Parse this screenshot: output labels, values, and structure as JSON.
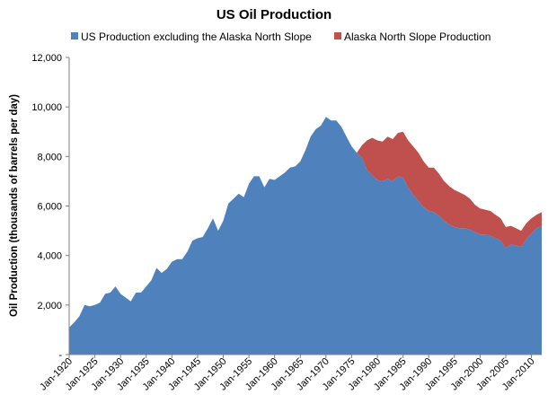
{
  "chart_data": {
    "type": "area",
    "stacked": true,
    "title": "US Oil Production",
    "xlabel": "",
    "ylabel": "Oil Production (thousands of barrels per day)",
    "ylim": [
      0,
      12000
    ],
    "yticks": [
      0,
      2000,
      4000,
      6000,
      8000,
      10000,
      12000
    ],
    "ytick_labels": [
      "-",
      "2,000",
      "4,000",
      "6,000",
      "8,000",
      "10,000",
      "12,000"
    ],
    "xlim": [
      1920,
      2012
    ],
    "xticks": [
      1920,
      1925,
      1930,
      1935,
      1940,
      1945,
      1950,
      1955,
      1960,
      1965,
      1970,
      1975,
      1980,
      1985,
      1990,
      1995,
      2000,
      2005,
      2010
    ],
    "xtick_labels": [
      "Jan-1920",
      "Jan-1925",
      "Jan-1930",
      "Jan-1935",
      "Jan-1940",
      "Jan-1945",
      "Jan-1950",
      "Jan-1955",
      "Jan-1960",
      "Jan-1965",
      "Jan-1970",
      "Jan-1975",
      "Jan-1980",
      "Jan-1985",
      "Jan-1990",
      "Jan-1995",
      "Jan-2000",
      "Jan-2005",
      "Jan-2010"
    ],
    "grid": false,
    "legend_position": "top",
    "x": [
      1920,
      1921,
      1922,
      1923,
      1924,
      1925,
      1926,
      1927,
      1928,
      1929,
      1930,
      1931,
      1932,
      1933,
      1934,
      1935,
      1936,
      1937,
      1938,
      1939,
      1940,
      1941,
      1942,
      1943,
      1944,
      1945,
      1946,
      1947,
      1948,
      1949,
      1950,
      1951,
      1952,
      1953,
      1954,
      1955,
      1956,
      1957,
      1958,
      1959,
      1960,
      1961,
      1962,
      1963,
      1964,
      1965,
      1966,
      1967,
      1968,
      1969,
      1970,
      1971,
      1972,
      1973,
      1974,
      1975,
      1976,
      1977,
      1978,
      1979,
      1980,
      1981,
      1982,
      1983,
      1984,
      1985,
      1986,
      1987,
      1988,
      1989,
      1990,
      1991,
      1992,
      1993,
      1994,
      1995,
      1996,
      1997,
      1998,
      1999,
      2000,
      2001,
      2002,
      2003,
      2004,
      2005,
      2006,
      2007,
      2008,
      2009,
      2010,
      2011,
      2012
    ],
    "series": [
      {
        "name": "US Production excluding the Alaska North Slope",
        "color": "#4f81bd",
        "values": [
          1100,
          1300,
          1550,
          2000,
          1950,
          2000,
          2100,
          2450,
          2500,
          2750,
          2450,
          2300,
          2150,
          2500,
          2500,
          2750,
          3000,
          3500,
          3300,
          3450,
          3750,
          3850,
          3850,
          4150,
          4600,
          4700,
          4750,
          5100,
          5500,
          5000,
          5400,
          6100,
          6300,
          6500,
          6350,
          6900,
          7200,
          7200,
          6750,
          7100,
          7050,
          7200,
          7350,
          7550,
          7600,
          7800,
          8250,
          8800,
          9100,
          9250,
          9600,
          9450,
          9450,
          9200,
          8800,
          8400,
          8150,
          7950,
          7450,
          7250,
          7050,
          7000,
          7100,
          7000,
          7200,
          7150,
          6750,
          6450,
          6200,
          5950,
          5800,
          5750,
          5600,
          5400,
          5250,
          5150,
          5100,
          5100,
          5050,
          4950,
          4850,
          4850,
          4800,
          4700,
          4600,
          4300,
          4450,
          4400,
          4350,
          4650,
          4900,
          5100,
          5200
        ]
      },
      {
        "name": "Alaska North Slope Production",
        "color": "#c0504d",
        "values": [
          0,
          0,
          0,
          0,
          0,
          0,
          0,
          0,
          0,
          0,
          0,
          0,
          0,
          0,
          0,
          0,
          0,
          0,
          0,
          0,
          0,
          0,
          0,
          0,
          0,
          0,
          0,
          0,
          0,
          0,
          0,
          0,
          0,
          0,
          0,
          0,
          0,
          0,
          0,
          0,
          0,
          0,
          0,
          0,
          0,
          0,
          0,
          0,
          0,
          0,
          0,
          0,
          0,
          0,
          0,
          0,
          0,
          500,
          1200,
          1500,
          1600,
          1600,
          1700,
          1700,
          1750,
          1850,
          1900,
          1950,
          1950,
          1850,
          1750,
          1800,
          1700,
          1600,
          1550,
          1500,
          1450,
          1350,
          1250,
          1100,
          1050,
          1000,
          1000,
          950,
          900,
          850,
          750,
          700,
          650,
          650,
          600,
          550,
          550
        ]
      }
    ]
  }
}
